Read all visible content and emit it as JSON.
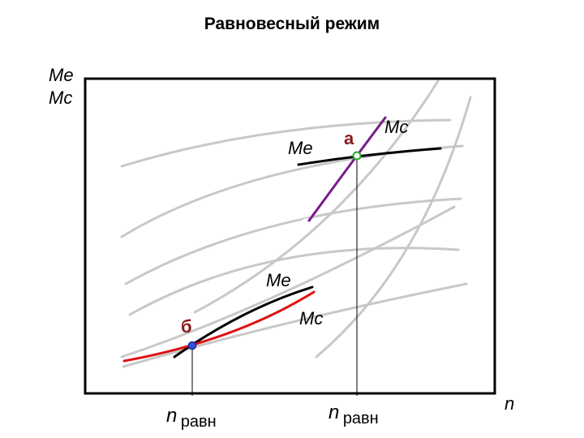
{
  "title": "Равновесный режим",
  "axes": {
    "y_label_line1": "Me",
    "y_label_line2": "Mc",
    "x_label": "n"
  },
  "upper": {
    "point_label": "а",
    "me_label": "Me",
    "mc_label": "Mc",
    "n_label_main": "n",
    "n_label_sub": "равн"
  },
  "lower": {
    "point_label": "б",
    "me_label": "Me",
    "mc_label": "Mc",
    "n_label_main": "n",
    "n_label_sub": "равн"
  },
  "colors": {
    "frame": "#000000",
    "background_curves": "#c8c8c8",
    "me_curve": "#000000",
    "mc_upper_curve": "#7a1a8c",
    "mc_lower_curve": "#e01010",
    "point_upper": "#22aa22",
    "point_lower": "#2244cc",
    "point_label": "#8b1a1a"
  }
}
